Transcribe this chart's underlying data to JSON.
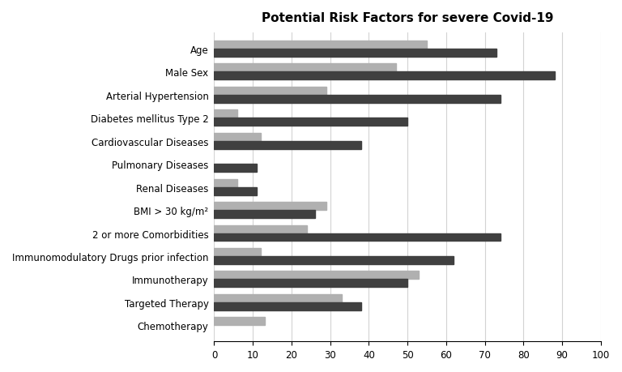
{
  "title": "Potential Risk Factors for severe Covid-19",
  "categories": [
    "Age",
    "Male Sex",
    "Arterial Hypertension",
    "Diabetes mellitus Type 2",
    "Cardiovascular Diseases",
    "Pulmonary Diseases",
    "Renal Diseases",
    "BMI > 30 kg/m²",
    "2 or more Comorbidities",
    "Immunomodulatory Drugs prior infection",
    "Immunotherapy",
    "Targeted Therapy",
    "Chemotherapy"
  ],
  "light_gray_values": [
    55,
    47,
    29,
    6,
    12,
    0,
    6,
    29,
    24,
    12,
    53,
    33,
    13
  ],
  "dark_gray_values": [
    73,
    88,
    74,
    50,
    38,
    11,
    11,
    26,
    74,
    62,
    50,
    38,
    0
  ],
  "light_gray_color": "#b0b0b0",
  "dark_gray_color": "#404040",
  "xlim": [
    0,
    100
  ],
  "xticks": [
    0,
    10,
    20,
    30,
    40,
    50,
    60,
    70,
    80,
    90,
    100
  ],
  "bar_height": 0.35,
  "figsize": [
    7.68,
    4.6
  ],
  "dpi": 100,
  "title_fontsize": 11,
  "label_fontsize": 8.5,
  "tick_fontsize": 8.5
}
